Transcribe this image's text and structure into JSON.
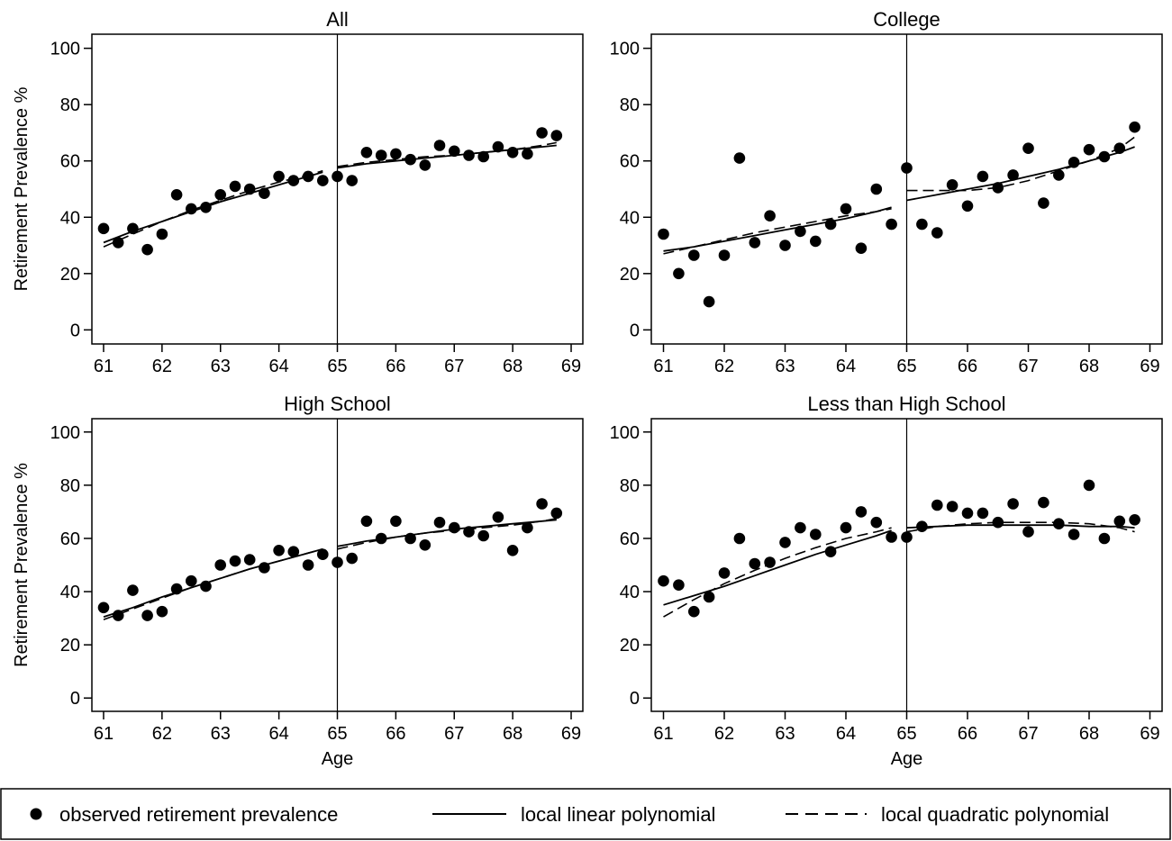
{
  "chart_data": {
    "type": "scatter",
    "layout": "2x2 panels with shared legend at bottom",
    "cutoff_age": 65,
    "xlim": [
      60.8,
      69.2
    ],
    "ylim": [
      -5,
      105
    ],
    "xticks": [
      61,
      62,
      63,
      64,
      65,
      66,
      67,
      68,
      69
    ],
    "yticks": [
      0,
      20,
      40,
      60,
      80,
      100
    ],
    "ylabel": "Retirement Prevalence %",
    "xlabel": "Age",
    "legend": {
      "placement": "bottom",
      "entries": [
        {
          "label": "observed retirement prevalence",
          "style": "marker"
        },
        {
          "label": "local linear polynomial",
          "style": "solid"
        },
        {
          "label": "local quadratic polynomial",
          "style": "dashed"
        }
      ]
    },
    "panels": [
      {
        "title": "All",
        "show_ylabel": true,
        "show_xlabel": false,
        "points": [
          [
            61,
            36
          ],
          [
            61.25,
            31
          ],
          [
            61.5,
            36
          ],
          [
            61.75,
            28.5
          ],
          [
            62,
            34
          ],
          [
            62.25,
            48
          ],
          [
            62.5,
            43
          ],
          [
            62.75,
            43.5
          ],
          [
            63,
            48
          ],
          [
            63.25,
            51
          ],
          [
            63.5,
            50
          ],
          [
            63.75,
            48.5
          ],
          [
            64,
            54.5
          ],
          [
            64.25,
            53
          ],
          [
            64.5,
            54.5
          ],
          [
            64.75,
            53
          ],
          [
            65,
            54.5
          ],
          [
            65.25,
            53
          ],
          [
            65.5,
            63
          ],
          [
            65.75,
            62
          ],
          [
            66,
            62.5
          ],
          [
            66.25,
            60.5
          ],
          [
            66.5,
            58.5
          ],
          [
            66.75,
            65.5
          ],
          [
            67,
            63.5
          ],
          [
            67.25,
            62
          ],
          [
            67.5,
            61.5
          ],
          [
            67.75,
            65
          ],
          [
            68,
            63
          ],
          [
            68.25,
            62.5
          ],
          [
            68.5,
            70
          ],
          [
            68.75,
            69
          ]
        ],
        "linear_left": [
          [
            61,
            31
          ],
          [
            61.5,
            35
          ],
          [
            62,
            38.5
          ],
          [
            62.5,
            42
          ],
          [
            63,
            45.5
          ],
          [
            63.5,
            48.5
          ],
          [
            64,
            51.5
          ],
          [
            64.5,
            54.5
          ],
          [
            64.75,
            56
          ]
        ],
        "quad_left": [
          [
            61,
            29.5
          ],
          [
            61.5,
            34
          ],
          [
            62,
            38.5
          ],
          [
            62.5,
            42.5
          ],
          [
            63,
            46
          ],
          [
            63.5,
            49.5
          ],
          [
            64,
            52.5
          ],
          [
            64.5,
            55
          ],
          [
            64.75,
            56.5
          ]
        ],
        "linear_right": [
          [
            65,
            57.5
          ],
          [
            65.5,
            59
          ],
          [
            66,
            60
          ],
          [
            66.5,
            61
          ],
          [
            67,
            62
          ],
          [
            67.5,
            63
          ],
          [
            68,
            64
          ],
          [
            68.5,
            65
          ],
          [
            68.75,
            65.5
          ]
        ],
        "quad_right": [
          [
            65,
            58
          ],
          [
            65.5,
            59.5
          ],
          [
            66,
            60.5
          ],
          [
            66.5,
            61.5
          ],
          [
            67,
            62
          ],
          [
            67.5,
            63
          ],
          [
            68,
            64
          ],
          [
            68.5,
            65.5
          ],
          [
            68.75,
            66.5
          ]
        ]
      },
      {
        "title": "College",
        "show_ylabel": false,
        "show_xlabel": false,
        "points": [
          [
            61,
            34
          ],
          [
            61.25,
            20
          ],
          [
            61.5,
            26.5
          ],
          [
            61.75,
            10
          ],
          [
            62,
            26.5
          ],
          [
            62.25,
            61
          ],
          [
            62.5,
            31
          ],
          [
            62.75,
            40.5
          ],
          [
            63,
            30
          ],
          [
            63.25,
            35
          ],
          [
            63.5,
            31.5
          ],
          [
            63.75,
            37.5
          ],
          [
            64,
            43
          ],
          [
            64.25,
            29
          ],
          [
            64.5,
            50
          ],
          [
            64.75,
            37.5
          ],
          [
            65,
            57.5
          ],
          [
            65.25,
            37.5
          ],
          [
            65.5,
            34.5
          ],
          [
            65.75,
            51.5
          ],
          [
            66,
            44
          ],
          [
            66.25,
            54.5
          ],
          [
            66.5,
            50.5
          ],
          [
            66.75,
            55
          ],
          [
            67,
            64.5
          ],
          [
            67.25,
            45
          ],
          [
            67.5,
            55
          ],
          [
            67.75,
            59.5
          ],
          [
            68,
            64
          ],
          [
            68.25,
            61.5
          ],
          [
            68.5,
            64.5
          ],
          [
            68.75,
            72
          ]
        ],
        "linear_left": [
          [
            61,
            28
          ],
          [
            61.5,
            29.5
          ],
          [
            62,
            31.5
          ],
          [
            62.5,
            33.5
          ],
          [
            63,
            35.5
          ],
          [
            63.5,
            37.5
          ],
          [
            64,
            39.5
          ],
          [
            64.5,
            42
          ],
          [
            64.75,
            43.5
          ]
        ],
        "quad_left": [
          [
            61,
            27
          ],
          [
            61.5,
            29.5
          ],
          [
            62,
            32
          ],
          [
            62.5,
            34.5
          ],
          [
            63,
            36.5
          ],
          [
            63.5,
            38.5
          ],
          [
            64,
            40.5
          ],
          [
            64.5,
            42
          ],
          [
            64.75,
            43
          ]
        ],
        "linear_right": [
          [
            65,
            46
          ],
          [
            65.5,
            48
          ],
          [
            66,
            50
          ],
          [
            66.5,
            52
          ],
          [
            67,
            54.5
          ],
          [
            67.5,
            57
          ],
          [
            68,
            60
          ],
          [
            68.5,
            63
          ],
          [
            68.75,
            65
          ]
        ],
        "quad_right": [
          [
            65,
            49.5
          ],
          [
            65.5,
            49.5
          ],
          [
            66,
            49.5
          ],
          [
            66.5,
            50.5
          ],
          [
            67,
            53
          ],
          [
            67.5,
            56.5
          ],
          [
            68,
            60
          ],
          [
            68.5,
            64.5
          ],
          [
            68.75,
            68.5
          ]
        ]
      },
      {
        "title": "High School",
        "show_ylabel": true,
        "show_xlabel": true,
        "points": [
          [
            61,
            34
          ],
          [
            61.25,
            31
          ],
          [
            61.5,
            40.5
          ],
          [
            61.75,
            31
          ],
          [
            62,
            32.5
          ],
          [
            62.25,
            41
          ],
          [
            62.5,
            44
          ],
          [
            62.75,
            42
          ],
          [
            63,
            50
          ],
          [
            63.25,
            51.5
          ],
          [
            63.5,
            52
          ],
          [
            63.75,
            49
          ],
          [
            64,
            55.5
          ],
          [
            64.25,
            55
          ],
          [
            64.5,
            50
          ],
          [
            64.75,
            54
          ],
          [
            65,
            51
          ],
          [
            65.25,
            52.5
          ],
          [
            65.5,
            66.5
          ],
          [
            65.75,
            60
          ],
          [
            66,
            66.5
          ],
          [
            66.25,
            60
          ],
          [
            66.5,
            57.5
          ],
          [
            66.75,
            66
          ],
          [
            67,
            64
          ],
          [
            67.25,
            62.5
          ],
          [
            67.5,
            61
          ],
          [
            67.75,
            68
          ],
          [
            68,
            55.5
          ],
          [
            68.25,
            64
          ],
          [
            68.5,
            73
          ],
          [
            68.75,
            69.5
          ]
        ],
        "linear_left": [
          [
            61,
            30.5
          ],
          [
            61.5,
            34
          ],
          [
            62,
            38
          ],
          [
            62.5,
            41.5
          ],
          [
            63,
            45
          ],
          [
            63.5,
            48.5
          ],
          [
            64,
            51.5
          ],
          [
            64.5,
            54.5
          ],
          [
            64.75,
            56
          ]
        ],
        "quad_left": [
          [
            61,
            29.5
          ],
          [
            61.5,
            33.5
          ],
          [
            62,
            37.5
          ],
          [
            62.5,
            41.5
          ],
          [
            63,
            45
          ],
          [
            63.5,
            48.5
          ],
          [
            64,
            51.5
          ],
          [
            64.5,
            54.5
          ],
          [
            64.75,
            56
          ]
        ],
        "linear_right": [
          [
            65,
            57
          ],
          [
            65.5,
            59
          ],
          [
            66,
            60.5
          ],
          [
            66.5,
            62
          ],
          [
            67,
            63.5
          ],
          [
            67.5,
            64.5
          ],
          [
            68,
            65.5
          ],
          [
            68.5,
            66.5
          ],
          [
            68.75,
            67
          ]
        ],
        "quad_right": [
          [
            65,
            56
          ],
          [
            65.5,
            58.5
          ],
          [
            66,
            60.5
          ],
          [
            66.5,
            62
          ],
          [
            67,
            63
          ],
          [
            67.5,
            64
          ],
          [
            68,
            65
          ],
          [
            68.5,
            66.5
          ],
          [
            68.75,
            67.5
          ]
        ]
      },
      {
        "title": "Less than High School",
        "show_ylabel": false,
        "show_xlabel": true,
        "points": [
          [
            61,
            44
          ],
          [
            61.25,
            42.5
          ],
          [
            61.5,
            32.5
          ],
          [
            61.75,
            38
          ],
          [
            62,
            47
          ],
          [
            62.25,
            60
          ],
          [
            62.5,
            50.5
          ],
          [
            62.75,
            51
          ],
          [
            63,
            58.5
          ],
          [
            63.25,
            64
          ],
          [
            63.5,
            61.5
          ],
          [
            63.75,
            55
          ],
          [
            64,
            64
          ],
          [
            64.25,
            70
          ],
          [
            64.5,
            66
          ],
          [
            64.75,
            60.5
          ],
          [
            65,
            60.5
          ],
          [
            65.25,
            64.5
          ],
          [
            65.5,
            72.5
          ],
          [
            65.75,
            72
          ],
          [
            66,
            69.5
          ],
          [
            66.25,
            69.5
          ],
          [
            66.5,
            66
          ],
          [
            66.75,
            73
          ],
          [
            67,
            62.5
          ],
          [
            67.25,
            73.5
          ],
          [
            67.5,
            65.5
          ],
          [
            67.75,
            61.5
          ],
          [
            68,
            80
          ],
          [
            68.25,
            60
          ],
          [
            68.5,
            66.5
          ],
          [
            68.75,
            67
          ]
        ],
        "linear_left": [
          [
            61,
            35
          ],
          [
            61.5,
            38.5
          ],
          [
            62,
            42
          ],
          [
            62.5,
            46
          ],
          [
            63,
            50
          ],
          [
            63.5,
            54
          ],
          [
            64,
            57.5
          ],
          [
            64.5,
            61
          ],
          [
            64.75,
            63
          ]
        ],
        "quad_left": [
          [
            61,
            30.5
          ],
          [
            61.5,
            37
          ],
          [
            62,
            43
          ],
          [
            62.5,
            48
          ],
          [
            63,
            52.5
          ],
          [
            63.5,
            56.5
          ],
          [
            64,
            60
          ],
          [
            64.5,
            62.5
          ],
          [
            64.75,
            64
          ]
        ],
        "linear_right": [
          [
            65,
            64
          ],
          [
            65.5,
            64.5
          ],
          [
            66,
            65
          ],
          [
            66.5,
            65
          ],
          [
            67,
            65
          ],
          [
            67.5,
            65
          ],
          [
            68,
            64.5
          ],
          [
            68.5,
            64.5
          ],
          [
            68.75,
            64
          ]
        ],
        "quad_right": [
          [
            65,
            62.5
          ],
          [
            65.5,
            64.5
          ],
          [
            66,
            65.5
          ],
          [
            66.5,
            66
          ],
          [
            67,
            66
          ],
          [
            67.5,
            66
          ],
          [
            68,
            65.5
          ],
          [
            68.5,
            64
          ],
          [
            68.75,
            62.5
          ]
        ]
      }
    ]
  }
}
